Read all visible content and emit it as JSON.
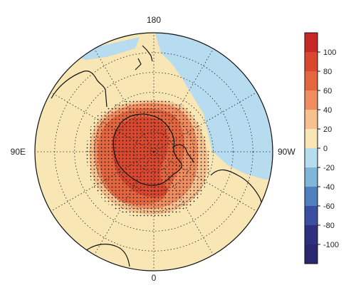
{
  "map": {
    "projection": "south-polar-stereographic",
    "longitude_labels": {
      "top": "180",
      "bottom": "0",
      "left": "90E",
      "right": "90W"
    },
    "latitude_circles": 6,
    "meridian_step_deg": 30,
    "stippling": "dotted region indicates significance"
  },
  "colorbar": {
    "ticks": [
      "100",
      "80",
      "60",
      "40",
      "20",
      "0",
      "-20",
      "-40",
      "-60",
      "-80",
      "-100"
    ],
    "colors": [
      "#c62828",
      "#d9472f",
      "#e4663f",
      "#ef8d5f",
      "#f6c18e",
      "#f8e7b4",
      "#b7dcef",
      "#80b6da",
      "#4f7fbc",
      "#3a4f9f",
      "#2f2f7f",
      "#2b2670"
    ]
  },
  "palette": {
    "ocean_neutral": "#f8e7b4",
    "light_orange": "#f6c18e",
    "orange": "#ef8d5f",
    "red_orange": "#e4663f",
    "red": "#d9472f",
    "light_blue": "#b7dcef"
  }
}
